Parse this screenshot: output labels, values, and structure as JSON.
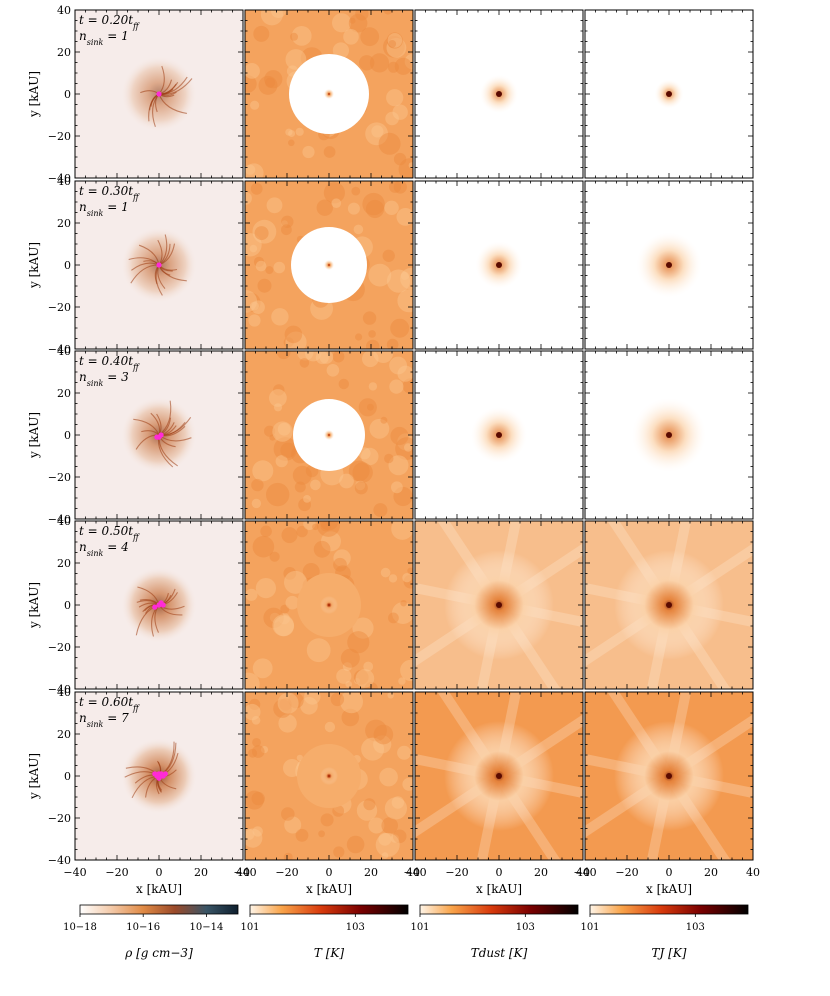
{
  "figure": {
    "rows": [
      {
        "time_label": "t = 0.20t",
        "time_sub": "ff",
        "sink_label": "n",
        "sink_sub": "sink",
        "sink_value": " = 1",
        "levels": {
          "rho": 0.55,
          "T": 0.5,
          "Tdust": 0.1,
          "TJ": 0.05
        },
        "sinks": [
          [
            0,
            0
          ]
        ]
      },
      {
        "time_label": "t = 0.30t",
        "time_sub": "ff",
        "sink_label": "n",
        "sink_sub": "sink",
        "sink_value": " = 1",
        "levels": {
          "rho": 0.6,
          "T": 0.45,
          "Tdust": 0.15,
          "TJ": 0.25
        },
        "sinks": [
          [
            0,
            0
          ]
        ]
      },
      {
        "time_label": "t = 0.40t",
        "time_sub": "ff",
        "sink_label": "n",
        "sink_sub": "sink",
        "sink_value": " = 3",
        "levels": {
          "rho": 0.65,
          "T": 0.4,
          "Tdust": 0.2,
          "TJ": 0.3
        },
        "sinks": [
          [
            -1,
            -1
          ],
          [
            0,
            -1
          ],
          [
            1,
            0
          ]
        ]
      },
      {
        "time_label": "t = 0.50t",
        "time_sub": "ff",
        "sink_label": "n",
        "sink_sub": "sink",
        "sink_value": " = 4",
        "levels": {
          "rho": 0.7,
          "T": 0.35,
          "Tdust": 0.35,
          "TJ": 0.35
        },
        "sinks": [
          [
            -2,
            -1
          ],
          [
            0,
            0
          ],
          [
            1,
            1
          ],
          [
            2,
            0
          ]
        ]
      },
      {
        "time_label": "t = 0.60t",
        "time_sub": "ff",
        "sink_label": "n",
        "sink_sub": "sink",
        "sink_value": " = 7",
        "levels": {
          "rho": 0.75,
          "T": 0.3,
          "Tdust": 0.5,
          "TJ": 0.5
        },
        "sinks": [
          [
            -1,
            0
          ],
          [
            0,
            1
          ],
          [
            1,
            1
          ],
          [
            2,
            0
          ],
          [
            3,
            1
          ],
          [
            0,
            -1
          ],
          [
            -2,
            1
          ]
        ]
      }
    ],
    "x_label": "x [kAU]",
    "y_label": "y [kAU]",
    "x_ticks": [
      "−40",
      "−20",
      "0",
      "20",
      "40"
    ],
    "y_ticks": [
      "40",
      "20",
      "0",
      "−20",
      "−40"
    ],
    "colorbars": [
      {
        "ticks": [
          "10−18",
          "10−16",
          "10−14"
        ],
        "label": "ρ [g cm−3]"
      },
      {
        "ticks": [
          "101",
          "103"
        ],
        "label": "T [K]"
      },
      {
        "ticks": [
          "101",
          "103"
        ],
        "label": "Tdust [K]"
      },
      {
        "ticks": [
          "101",
          "103"
        ],
        "label": "TJ [K]"
      }
    ]
  },
  "chart_data": {
    "type": "heatmap",
    "title": "",
    "xlabel": "x [kAU]",
    "ylabel": "y [kAU]",
    "xlim": [
      -40,
      40
    ],
    "ylim": [
      -40,
      40
    ],
    "columns": [
      "rho [g cm^-3]",
      "T [K]",
      "T_dust [K]",
      "T_J [K]"
    ],
    "rows": [
      "t = 0.20 t_ff, n_sink = 1",
      "t = 0.30 t_ff, n_sink = 1",
      "t = 0.40 t_ff, n_sink = 3",
      "t = 0.50 t_ff, n_sink = 4",
      "t = 0.60 t_ff, n_sink = 7"
    ],
    "colorbar_ranges": {
      "rho": [
        1e-18,
        1e-13
      ],
      "T": [
        10,
        10000
      ],
      "T_dust": [
        10,
        10000
      ],
      "T_J": [
        10,
        10000
      ]
    }
  }
}
